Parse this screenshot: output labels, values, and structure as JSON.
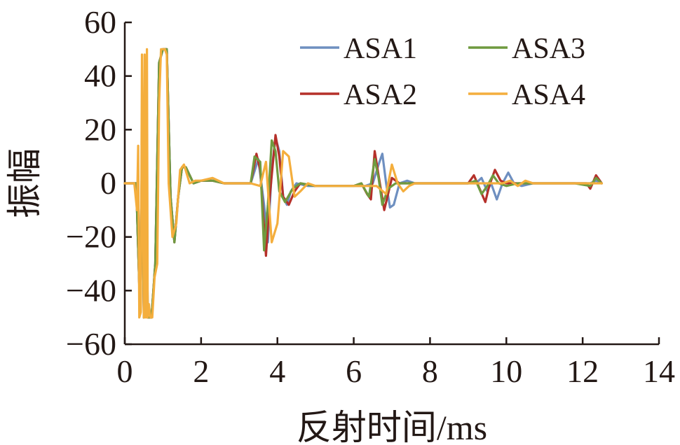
{
  "chart_data": {
    "type": "line",
    "title": "",
    "xlabel": "反射时间/ms",
    "ylabel": "振幅",
    "xlim": [
      0,
      14
    ],
    "ylim": [
      -60,
      60
    ],
    "xticks": [
      0,
      2,
      4,
      6,
      8,
      10,
      12,
      14
    ],
    "yticks": [
      -60,
      -40,
      -20,
      0,
      20,
      40,
      60
    ],
    "xtick_labels": [
      "0",
      "2",
      "4",
      "6",
      "8",
      "10",
      "12",
      "14"
    ],
    "ytick_labels": [
      "−60",
      "−40",
      "−20",
      "0",
      "20",
      "40",
      "60"
    ],
    "grid": false,
    "legend_position": "top-right",
    "series": [
      {
        "name": "ASA1",
        "color": "#6e8fc0",
        "points": [
          [
            0,
            0
          ],
          [
            0.3,
            0
          ],
          [
            0.4,
            -48
          ],
          [
            0.45,
            10
          ],
          [
            0.5,
            -50
          ],
          [
            0.55,
            45
          ],
          [
            0.6,
            -50
          ],
          [
            0.7,
            -50
          ],
          [
            0.8,
            -30
          ],
          [
            0.9,
            45
          ],
          [
            1.0,
            50
          ],
          [
            1.1,
            50
          ],
          [
            1.2,
            -5
          ],
          [
            1.3,
            -22
          ],
          [
            1.4,
            -5
          ],
          [
            1.5,
            6
          ],
          [
            1.6,
            6
          ],
          [
            1.8,
            0
          ],
          [
            2.0,
            1
          ],
          [
            2.3,
            1
          ],
          [
            2.6,
            0
          ],
          [
            3.0,
            0
          ],
          [
            3.3,
            0
          ],
          [
            3.5,
            9
          ],
          [
            3.65,
            -8
          ],
          [
            3.75,
            -22
          ],
          [
            3.85,
            5
          ],
          [
            3.95,
            17
          ],
          [
            4.05,
            12
          ],
          [
            4.15,
            -5
          ],
          [
            4.25,
            -8
          ],
          [
            4.35,
            -3
          ],
          [
            4.5,
            0
          ],
          [
            4.8,
            -1
          ],
          [
            5.2,
            -1
          ],
          [
            5.6,
            -1
          ],
          [
            6.0,
            -1
          ],
          [
            6.3,
            -1
          ],
          [
            6.5,
            0
          ],
          [
            6.65,
            7
          ],
          [
            6.75,
            11
          ],
          [
            6.85,
            0
          ],
          [
            6.95,
            -9
          ],
          [
            7.05,
            -8
          ],
          [
            7.2,
            0
          ],
          [
            7.4,
            1
          ],
          [
            7.6,
            0
          ],
          [
            8.0,
            0
          ],
          [
            8.5,
            0
          ],
          [
            9.0,
            0
          ],
          [
            9.2,
            0
          ],
          [
            9.35,
            2
          ],
          [
            9.5,
            -3
          ],
          [
            9.6,
            0
          ],
          [
            9.75,
            -6
          ],
          [
            9.9,
            0
          ],
          [
            10.05,
            4
          ],
          [
            10.2,
            0
          ],
          [
            10.4,
            -1
          ],
          [
            10.7,
            0
          ],
          [
            11.5,
            0
          ],
          [
            12.2,
            0
          ],
          [
            12.35,
            1
          ],
          [
            12.5,
            0
          ]
        ]
      },
      {
        "name": "ASA2",
        "color": "#b5302a",
        "points": [
          [
            0,
            0
          ],
          [
            0.3,
            0
          ],
          [
            0.4,
            -48
          ],
          [
            0.45,
            10
          ],
          [
            0.5,
            -50
          ],
          [
            0.55,
            45
          ],
          [
            0.6,
            -50
          ],
          [
            0.7,
            -50
          ],
          [
            0.8,
            -30
          ],
          [
            0.9,
            45
          ],
          [
            1.0,
            50
          ],
          [
            1.1,
            50
          ],
          [
            1.2,
            -5
          ],
          [
            1.3,
            -22
          ],
          [
            1.4,
            -5
          ],
          [
            1.5,
            6
          ],
          [
            1.6,
            6
          ],
          [
            1.8,
            0
          ],
          [
            2.0,
            1
          ],
          [
            2.3,
            1
          ],
          [
            2.6,
            0
          ],
          [
            3.0,
            0
          ],
          [
            3.3,
            0
          ],
          [
            3.45,
            11
          ],
          [
            3.55,
            5
          ],
          [
            3.7,
            -27
          ],
          [
            3.8,
            -5
          ],
          [
            3.95,
            18
          ],
          [
            4.05,
            10
          ],
          [
            4.15,
            -5
          ],
          [
            4.3,
            -8
          ],
          [
            4.45,
            -3
          ],
          [
            4.6,
            0
          ],
          [
            5.0,
            -1
          ],
          [
            5.5,
            -1
          ],
          [
            6.0,
            -1
          ],
          [
            6.2,
            0
          ],
          [
            6.35,
            -4
          ],
          [
            6.45,
            -6
          ],
          [
            6.55,
            12
          ],
          [
            6.65,
            3
          ],
          [
            6.8,
            -10
          ],
          [
            6.9,
            -4
          ],
          [
            7.0,
            2
          ],
          [
            7.2,
            0
          ],
          [
            7.5,
            0
          ],
          [
            8.0,
            0
          ],
          [
            8.5,
            0
          ],
          [
            9.0,
            0
          ],
          [
            9.15,
            3
          ],
          [
            9.3,
            -2
          ],
          [
            9.45,
            -7
          ],
          [
            9.55,
            -1
          ],
          [
            9.7,
            5
          ],
          [
            9.85,
            1
          ],
          [
            10.0,
            0
          ],
          [
            10.3,
            0
          ],
          [
            11.0,
            0
          ],
          [
            11.8,
            0
          ],
          [
            12.1,
            0
          ],
          [
            12.2,
            -2
          ],
          [
            12.35,
            3
          ],
          [
            12.5,
            0
          ]
        ]
      },
      {
        "name": "ASA3",
        "color": "#6f9a3f",
        "points": [
          [
            0,
            0
          ],
          [
            0.3,
            0
          ],
          [
            0.4,
            -48
          ],
          [
            0.45,
            10
          ],
          [
            0.5,
            -50
          ],
          [
            0.55,
            45
          ],
          [
            0.6,
            -50
          ],
          [
            0.7,
            -50
          ],
          [
            0.8,
            -30
          ],
          [
            0.9,
            45
          ],
          [
            1.0,
            50
          ],
          [
            1.1,
            50
          ],
          [
            1.2,
            -5
          ],
          [
            1.3,
            -22
          ],
          [
            1.4,
            -5
          ],
          [
            1.5,
            6
          ],
          [
            1.6,
            6
          ],
          [
            1.8,
            0
          ],
          [
            2.0,
            1
          ],
          [
            2.3,
            1
          ],
          [
            2.6,
            0
          ],
          [
            3.0,
            0
          ],
          [
            3.3,
            0
          ],
          [
            3.4,
            10
          ],
          [
            3.55,
            8
          ],
          [
            3.65,
            -25
          ],
          [
            3.75,
            -8
          ],
          [
            3.85,
            16
          ],
          [
            3.95,
            12
          ],
          [
            4.05,
            -3
          ],
          [
            4.2,
            -7
          ],
          [
            4.4,
            -2
          ],
          [
            4.6,
            0
          ],
          [
            5.0,
            -1
          ],
          [
            5.5,
            -1
          ],
          [
            6.0,
            -1
          ],
          [
            6.2,
            0
          ],
          [
            6.4,
            -5
          ],
          [
            6.55,
            9
          ],
          [
            6.65,
            2
          ],
          [
            6.75,
            -8
          ],
          [
            6.9,
            -2
          ],
          [
            7.1,
            0
          ],
          [
            7.5,
            0
          ],
          [
            8.0,
            0
          ],
          [
            8.5,
            0
          ],
          [
            9.0,
            0
          ],
          [
            9.2,
            1
          ],
          [
            9.35,
            -4
          ],
          [
            9.5,
            -1
          ],
          [
            9.65,
            3
          ],
          [
            9.8,
            0
          ],
          [
            10.0,
            -1
          ],
          [
            10.3,
            0
          ],
          [
            11.0,
            0
          ],
          [
            11.8,
            0
          ],
          [
            12.2,
            -1
          ],
          [
            12.35,
            2
          ],
          [
            12.5,
            0
          ]
        ]
      },
      {
        "name": "ASA4",
        "color": "#f4ae3d",
        "points": [
          [
            0,
            0
          ],
          [
            0.25,
            0
          ],
          [
            0.32,
            -10
          ],
          [
            0.35,
            14
          ],
          [
            0.38,
            -50
          ],
          [
            0.42,
            -48
          ],
          [
            0.45,
            48
          ],
          [
            0.5,
            -50
          ],
          [
            0.52,
            48
          ],
          [
            0.55,
            -50
          ],
          [
            0.58,
            50
          ],
          [
            0.6,
            -50
          ],
          [
            0.63,
            -45
          ],
          [
            0.67,
            -50
          ],
          [
            0.72,
            -50
          ],
          [
            0.78,
            -35
          ],
          [
            0.85,
            -30
          ],
          [
            0.9,
            30
          ],
          [
            0.95,
            50
          ],
          [
            1.05,
            50
          ],
          [
            1.1,
            48
          ],
          [
            1.15,
            0
          ],
          [
            1.25,
            -20
          ],
          [
            1.35,
            -15
          ],
          [
            1.45,
            5
          ],
          [
            1.55,
            7
          ],
          [
            1.7,
            0
          ],
          [
            1.85,
            1
          ],
          [
            2.0,
            1
          ],
          [
            2.3,
            2
          ],
          [
            2.6,
            0
          ],
          [
            3.0,
            0
          ],
          [
            3.3,
            0
          ],
          [
            3.55,
            -1
          ],
          [
            3.7,
            8
          ],
          [
            3.85,
            -22
          ],
          [
            4.0,
            -15
          ],
          [
            4.15,
            12
          ],
          [
            4.3,
            10
          ],
          [
            4.45,
            -5
          ],
          [
            4.6,
            -3
          ],
          [
            4.8,
            0
          ],
          [
            5.0,
            -1
          ],
          [
            5.5,
            -1
          ],
          [
            6.0,
            -1
          ],
          [
            6.4,
            -1
          ],
          [
            6.6,
            -1
          ],
          [
            6.85,
            -4
          ],
          [
            7.0,
            7
          ],
          [
            7.15,
            0
          ],
          [
            7.3,
            -3
          ],
          [
            7.45,
            -1
          ],
          [
            7.6,
            0
          ],
          [
            8.0,
            0
          ],
          [
            8.5,
            0
          ],
          [
            9.0,
            0
          ],
          [
            9.5,
            0
          ],
          [
            9.9,
            0
          ],
          [
            10.1,
            1
          ],
          [
            10.3,
            -1
          ],
          [
            10.5,
            1
          ],
          [
            10.7,
            0
          ],
          [
            11.0,
            0
          ],
          [
            11.5,
            0
          ],
          [
            12.0,
            0
          ],
          [
            12.3,
            0
          ],
          [
            12.5,
            0
          ]
        ]
      }
    ]
  }
}
